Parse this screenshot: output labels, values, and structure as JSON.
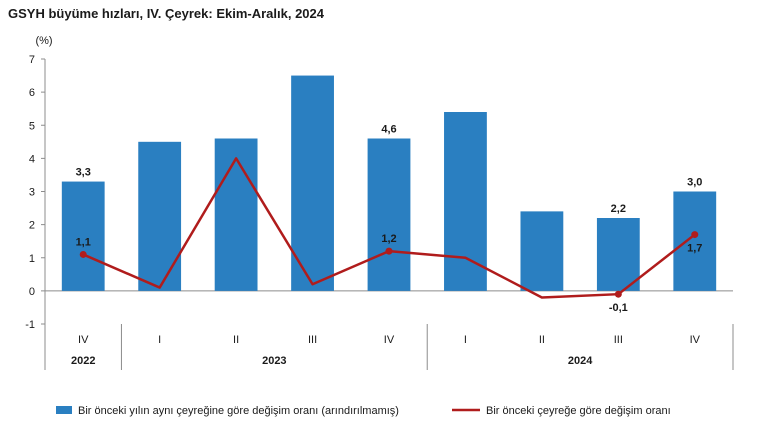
{
  "chart_data": {
    "type": "bar",
    "title": "GSYH büyüme hızları, IV. Çeyrek: Ekim-Aralık, 2024",
    "ylabel": "(%)",
    "ylim": [
      -1,
      7
    ],
    "yticks": [
      -1,
      0,
      1,
      2,
      3,
      4,
      5,
      6,
      7
    ],
    "grid": false,
    "legend_position": "bottom",
    "categories": [
      "IV",
      "I",
      "II",
      "III",
      "IV",
      "I",
      "II",
      "III",
      "IV"
    ],
    "year_groups": [
      {
        "label": "2022",
        "count": 1
      },
      {
        "label": "2023",
        "count": 4
      },
      {
        "label": "2024",
        "count": 4
      }
    ],
    "series": [
      {
        "name": "Bir önceki yılın aynı çeyreğine göre değişim oranı (arındırılmamış)",
        "type": "bar",
        "color": "#2a7fc1",
        "values": [
          3.3,
          4.5,
          4.6,
          6.5,
          4.6,
          5.4,
          2.4,
          2.2,
          3.0
        ],
        "labels": [
          "3,3",
          "",
          "",
          "",
          "4,6",
          "",
          "",
          "2,2",
          "3,0"
        ]
      },
      {
        "name": "Bir önceki çeyreğe göre değişim oranı",
        "type": "line",
        "color": "#b01c1c",
        "values": [
          1.1,
          0.1,
          4.0,
          0.2,
          1.2,
          1.0,
          -0.2,
          -0.1,
          1.7
        ],
        "labels": [
          "1,1",
          "",
          "",
          "",
          "1,2",
          "",
          "",
          "-0,1",
          "1,7"
        ]
      }
    ]
  }
}
